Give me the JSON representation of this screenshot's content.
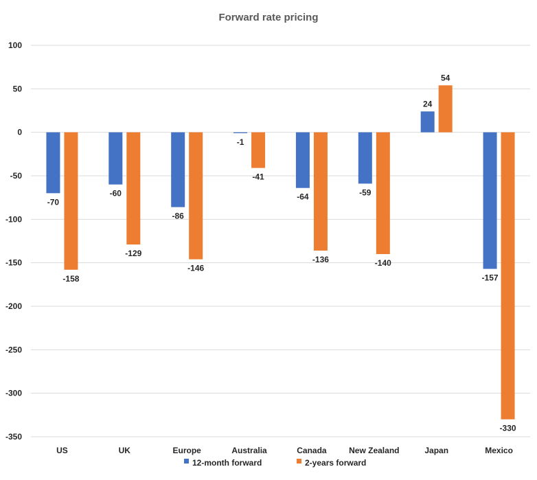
{
  "chart_data": {
    "type": "bar",
    "title": "Forward rate pricing",
    "categories": [
      "US",
      "UK",
      "Europe",
      "Australia",
      "Canada",
      "New Zealand",
      "Japan",
      "Mexico"
    ],
    "series": [
      {
        "name": "12-month forward",
        "color": "#4472C4",
        "values": [
          -70,
          -60,
          -86,
          -1,
          -64,
          -59,
          24,
          -157
        ]
      },
      {
        "name": "2-years forward",
        "color": "#ED7D31",
        "values": [
          -158,
          -129,
          -146,
          -41,
          -136,
          -140,
          54,
          -330
        ]
      }
    ],
    "ylim": [
      -350,
      100
    ],
    "yticks": [
      100,
      50,
      0,
      -50,
      -100,
      -150,
      -200,
      -250,
      -300,
      -350
    ],
    "grid": true,
    "legend_position": "bottom",
    "xlabel": "",
    "ylabel": ""
  }
}
